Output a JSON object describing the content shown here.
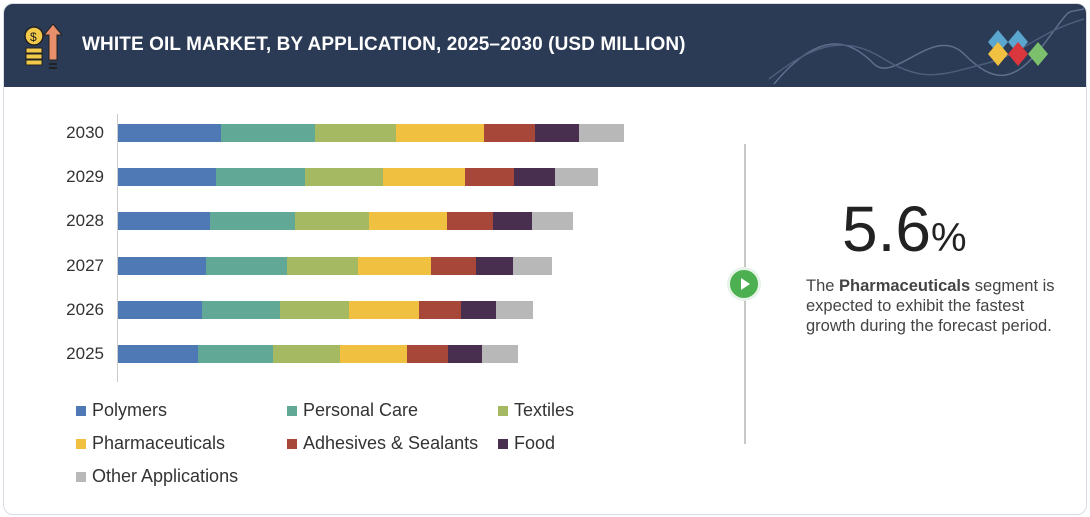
{
  "header": {
    "title": "WHITE OIL MARKET, BY APPLICATION, 2025–2030 (USD MILLION)"
  },
  "chart_data": {
    "type": "bar",
    "orientation": "horizontal",
    "stacked": true,
    "categories": [
      "2030",
      "2029",
      "2028",
      "2027",
      "2026",
      "2025"
    ],
    "series": [
      {
        "name": "Polymers",
        "color": "#4e79b4",
        "values": [
          103,
          98,
          92,
          88,
          84,
          80
        ]
      },
      {
        "name": "Personal Care",
        "color": "#62a897",
        "values": [
          94,
          89,
          85,
          81,
          78,
          75
        ]
      },
      {
        "name": "Textiles",
        "color": "#a5b862",
        "values": [
          81,
          78,
          74,
          71,
          69,
          67
        ]
      },
      {
        "name": "Pharmaceuticals",
        "color": "#f0c041",
        "values": [
          88,
          82,
          78,
          73,
          70,
          67
        ]
      },
      {
        "name": "Adhesives & Sealants",
        "color": "#a6473a",
        "values": [
          51,
          49,
          46,
          45,
          42,
          41
        ]
      },
      {
        "name": "Food",
        "color": "#482f4f",
        "values": [
          44,
          41,
          39,
          37,
          35,
          34
        ]
      },
      {
        "name": "Other Applications",
        "color": "#b8b8b8",
        "values": [
          45,
          43,
          41,
          39,
          37,
          36
        ]
      }
    ],
    "xlabel": "",
    "ylabel": "",
    "grid": false,
    "legend": "bottom"
  },
  "highlight": {
    "value": "5.6",
    "unit": "%",
    "text_pre": "The ",
    "text_bold": "Pharmaceuticals",
    "text_post": " segment is expected to exhibit the fastest growth during the forecast period."
  }
}
